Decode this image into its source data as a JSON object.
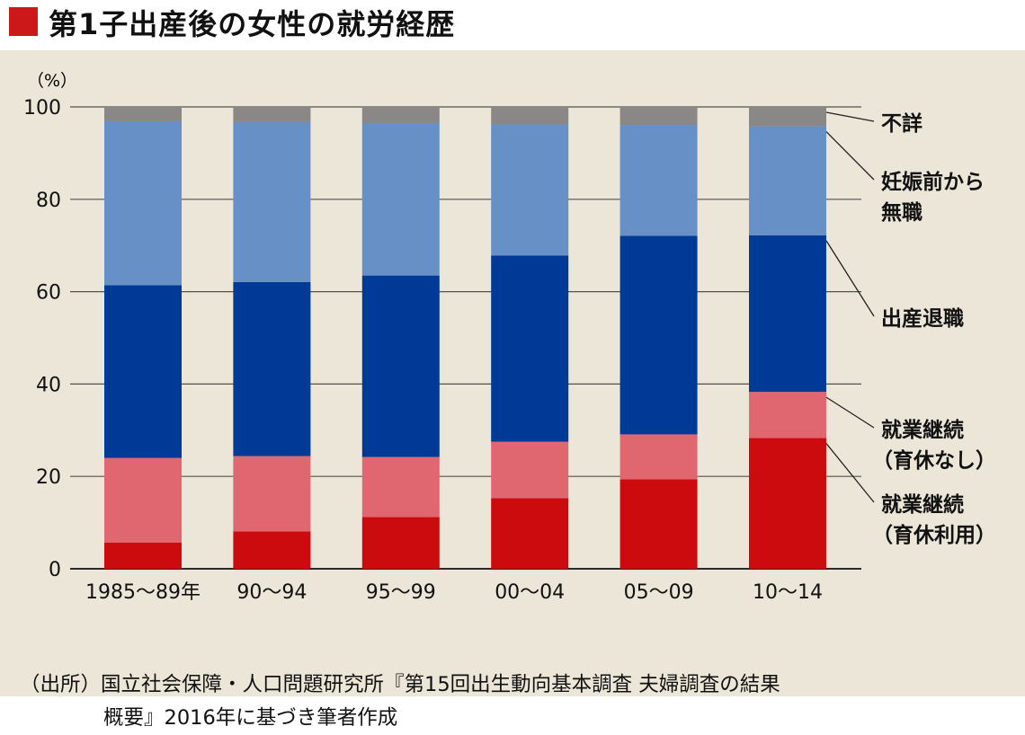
{
  "title": "第1子出産後の女性の就労経歴",
  "colors": {
    "title_square": "#cc1818",
    "panel_background": "#ece6d8",
    "gridline": "#55524c",
    "axis_line": "#2a2a2a",
    "leader_line": "#222222"
  },
  "chart_data": {
    "type": "bar",
    "stacked": true,
    "y_unit_label": "（%）",
    "ylim": [
      0,
      100
    ],
    "yticks": [
      0,
      20,
      40,
      60,
      80,
      100
    ],
    "grid": true,
    "categories": [
      "1985～89年",
      "90～94",
      "95～99",
      "00～04",
      "05～09",
      "10～14"
    ],
    "series": [
      {
        "name": "就業継続（育休利用）",
        "label_lines": [
          "就業継続",
          "（育休利用）"
        ],
        "color": "#cc0b0e",
        "values": [
          5.7,
          8.1,
          11.2,
          15.3,
          19.4,
          28.3
        ]
      },
      {
        "name": "就業継続（育休なし）",
        "label_lines": [
          "就業継続",
          "（育休なし）"
        ],
        "color": "#e06670",
        "values": [
          18.3,
          16.3,
          13.0,
          12.2,
          9.7,
          10.0
        ]
      },
      {
        "name": "出産退職",
        "label_lines": [
          "出産退職"
        ],
        "color": "#003a97",
        "values": [
          37.4,
          37.7,
          39.3,
          40.3,
          43.0,
          33.9
        ]
      },
      {
        "name": "妊娠前から無職",
        "label_lines": [
          "妊娠前から",
          "無職"
        ],
        "color": "#6690c6",
        "values": [
          35.5,
          34.6,
          33.0,
          28.4,
          24.0,
          23.6
        ]
      },
      {
        "name": "不詳",
        "label_lines": [
          "不詳"
        ],
        "color": "#8a8886",
        "values": [
          3.1,
          3.3,
          3.5,
          3.8,
          3.9,
          4.2
        ]
      }
    ]
  },
  "source_note": {
    "line1": "（出所）国立社会保障・人口問題研究所『第15回出生動向基本調査 夫婦調査の結果",
    "line2": "概要』2016年に基づき筆者作成"
  }
}
